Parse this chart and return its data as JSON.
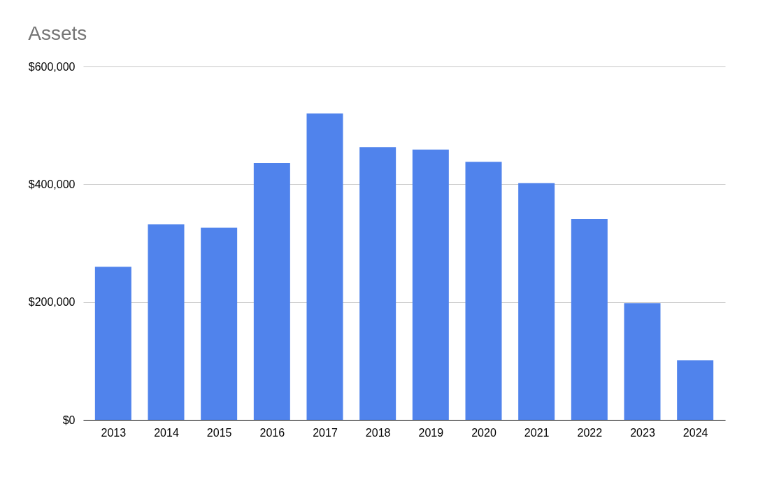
{
  "chart_data": {
    "type": "bar",
    "title": "Assets",
    "categories": [
      "2013",
      "2014",
      "2015",
      "2016",
      "2017",
      "2018",
      "2019",
      "2020",
      "2021",
      "2022",
      "2023",
      "2024"
    ],
    "series": [
      {
        "color": "#5083ec",
        "values": [
          260000,
          332000,
          326000,
          436000,
          520000,
          463000,
          459000,
          438000,
          402000,
          341000,
          198000,
          101000
        ]
      }
    ],
    "ylim": [
      0,
      600000
    ],
    "yticks": [
      {
        "value": 0,
        "label": "$0"
      },
      {
        "value": 200000,
        "label": "$200,000"
      },
      {
        "value": 400000,
        "label": "$400,000"
      },
      {
        "value": 600000,
        "label": "$600,000"
      }
    ],
    "grid": "y"
  }
}
